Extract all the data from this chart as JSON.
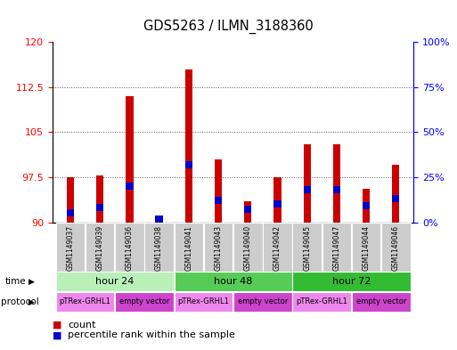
{
  "title": "GDS5263 / ILMN_3188360",
  "samples": [
    "GSM1149037",
    "GSM1149039",
    "GSM1149036",
    "GSM1149038",
    "GSM1149041",
    "GSM1149043",
    "GSM1149040",
    "GSM1149042",
    "GSM1149045",
    "GSM1149047",
    "GSM1149044",
    "GSM1149046"
  ],
  "red_values": [
    97.5,
    97.8,
    111.0,
    90.2,
    115.5,
    100.5,
    93.5,
    97.5,
    103.0,
    103.0,
    95.5,
    99.5
  ],
  "blue_values": [
    5.0,
    8.0,
    20.0,
    1.5,
    32.0,
    12.0,
    7.0,
    10.0,
    18.0,
    18.0,
    9.0,
    13.0
  ],
  "ymin": 90,
  "ymax": 120,
  "yticks": [
    90,
    97.5,
    105,
    112.5,
    120
  ],
  "ytick_labels": [
    "90",
    "97.5",
    "105",
    "112.5",
    "120"
  ],
  "y2ticks": [
    0,
    25,
    50,
    75,
    100
  ],
  "y2ticklabels": [
    "0%",
    "25%",
    "50%",
    "75%",
    "100%"
  ],
  "time_groups": [
    {
      "label": "hour 24",
      "start": 0,
      "end": 4,
      "color": "#b8f0b8"
    },
    {
      "label": "hour 48",
      "start": 4,
      "end": 8,
      "color": "#55cc55"
    },
    {
      "label": "hour 72",
      "start": 8,
      "end": 12,
      "color": "#33bb33"
    }
  ],
  "protocol_groups": [
    {
      "label": "pTRex-GRHL1",
      "start": 0,
      "end": 2,
      "color": "#ee88ee"
    },
    {
      "label": "empty vector",
      "start": 2,
      "end": 4,
      "color": "#cc44cc"
    },
    {
      "label": "pTRex-GRHL1",
      "start": 4,
      "end": 6,
      "color": "#ee88ee"
    },
    {
      "label": "empty vector",
      "start": 6,
      "end": 8,
      "color": "#cc44cc"
    },
    {
      "label": "pTRex-GRHL1",
      "start": 8,
      "end": 10,
      "color": "#ee88ee"
    },
    {
      "label": "empty vector",
      "start": 10,
      "end": 12,
      "color": "#cc44cc"
    }
  ],
  "bar_color_red": "#cc0000",
  "bar_color_blue": "#0000cc",
  "bar_width": 0.25,
  "blue_bar_height": 1.2,
  "grid_color": "#555555"
}
